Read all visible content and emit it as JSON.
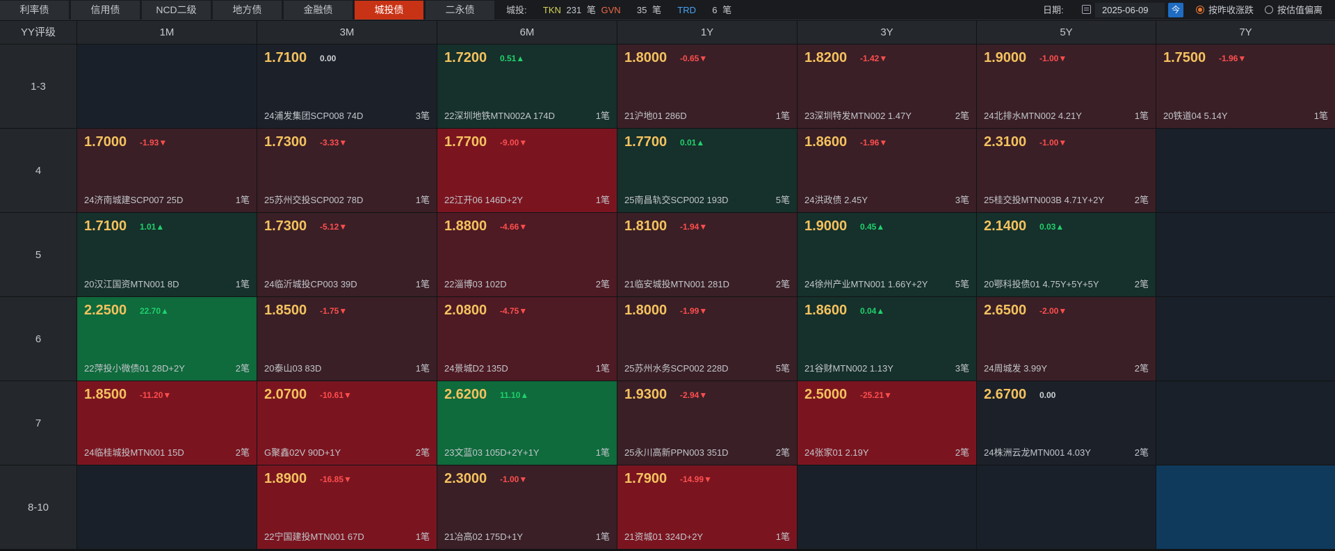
{
  "tabs": [
    "利率债",
    "信用债",
    "NCD二级",
    "地方债",
    "金融债",
    "城投债",
    "二永债"
  ],
  "active_tab": 5,
  "info": {
    "label": "城投:",
    "tkn_label": "TKN",
    "tkn_count": "231",
    "tkn_unit": "笔",
    "gvn_label": "GVN",
    "gvn_count": "35",
    "gvn_unit": "笔",
    "trd_label": "TRD",
    "trd_count": "6",
    "trd_unit": "笔"
  },
  "date": {
    "label": "日期:",
    "value": "2025-06-09",
    "today": "今"
  },
  "options": {
    "by_close": "按昨收涨跌",
    "by_valuation": "按估值偏离",
    "selected": "by_close"
  },
  "columns": [
    "YY评级",
    "1M",
    "3M",
    "6M",
    "1Y",
    "3Y",
    "5Y",
    "7Y"
  ],
  "rows": [
    "1-3",
    "4",
    "5",
    "6",
    "7",
    "8-10"
  ],
  "colors": {
    "accent": "#c93315",
    "rate": "#f4c25f",
    "up": "#1fd16c",
    "down": "#ff4e4e"
  },
  "cells": [
    [
      null,
      {
        "rate": "1.7100",
        "chg": "0.00",
        "dir": "flat",
        "name": "24浦发集团SCP008 74D",
        "cnt": "3笔",
        "bg": "flat"
      },
      {
        "rate": "1.7200",
        "chg": "0.51▲",
        "dir": "up",
        "name": "22深圳地铁MTN002A 174D",
        "cnt": "1笔",
        "bg": "gl"
      },
      {
        "rate": "1.8000",
        "chg": "-0.65▼",
        "dir": "down",
        "name": "21沪地01 286D",
        "cnt": "1笔",
        "bg": "rl"
      },
      {
        "rate": "1.8200",
        "chg": "-1.42▼",
        "dir": "down",
        "name": "23深圳特发MTN002 1.47Y",
        "cnt": "2笔",
        "bg": "rl"
      },
      {
        "rate": "1.9000",
        "chg": "-1.00▼",
        "dir": "down",
        "name": "24北排水MTN002 4.21Y",
        "cnt": "1笔",
        "bg": "rl"
      },
      {
        "rate": "1.7500",
        "chg": "-1.96▼",
        "dir": "down",
        "name": "20铁道04 5.14Y",
        "cnt": "1笔",
        "bg": "rl"
      }
    ],
    [
      {
        "rate": "1.7000",
        "chg": "-1.93▼",
        "dir": "down",
        "name": "24济南城建SCP007 25D",
        "cnt": "1笔",
        "bg": "rl"
      },
      {
        "rate": "1.7300",
        "chg": "-3.33▼",
        "dir": "down",
        "name": "25苏州交投SCP002 78D",
        "cnt": "1笔",
        "bg": "rl"
      },
      {
        "rate": "1.7700",
        "chg": "-9.00▼",
        "dir": "down",
        "name": "22江开06 146D+2Y",
        "cnt": "1笔",
        "bg": "rh"
      },
      {
        "rate": "1.7700",
        "chg": "0.01▲",
        "dir": "up",
        "name": "25南昌轨交SCP002 193D",
        "cnt": "5笔",
        "bg": "gl"
      },
      {
        "rate": "1.8600",
        "chg": "-1.96▼",
        "dir": "down",
        "name": "24洪政债 2.45Y",
        "cnt": "3笔",
        "bg": "rl"
      },
      {
        "rate": "2.3100",
        "chg": "-1.00▼",
        "dir": "down",
        "name": "25桂交投MTN003B 4.71Y+2Y",
        "cnt": "2笔",
        "bg": "rl"
      },
      null
    ],
    [
      {
        "rate": "1.7100",
        "chg": "1.01▲",
        "dir": "up",
        "name": "20汉江国资MTN001 8D",
        "cnt": "1笔",
        "bg": "gl"
      },
      {
        "rate": "1.7300",
        "chg": "-5.12▼",
        "dir": "down",
        "name": "24临沂城投CP003 39D",
        "cnt": "1笔",
        "bg": "rl"
      },
      {
        "rate": "1.8800",
        "chg": "-4.66▼",
        "dir": "down",
        "name": "22淄博03 102D",
        "cnt": "2笔",
        "bg": "rm"
      },
      {
        "rate": "1.8100",
        "chg": "-1.94▼",
        "dir": "down",
        "name": "21临安城投MTN001 281D",
        "cnt": "2笔",
        "bg": "rl"
      },
      {
        "rate": "1.9000",
        "chg": "0.45▲",
        "dir": "up",
        "name": "24徐州产业MTN001 1.66Y+2Y",
        "cnt": "5笔",
        "bg": "gl"
      },
      {
        "rate": "2.1400",
        "chg": "0.03▲",
        "dir": "up",
        "name": "20鄂科投债01 4.75Y+5Y+5Y",
        "cnt": "2笔",
        "bg": "gl"
      },
      null
    ],
    [
      {
        "rate": "2.2500",
        "chg": "22.70▲",
        "dir": "up",
        "name": "22萍投小微债01 28D+2Y",
        "cnt": "2笔",
        "bg": "gm"
      },
      {
        "rate": "1.8500",
        "chg": "-1.75▼",
        "dir": "down",
        "name": "20泰山03 83D",
        "cnt": "1笔",
        "bg": "rl"
      },
      {
        "rate": "2.0800",
        "chg": "-4.75▼",
        "dir": "down",
        "name": "24景城D2 135D",
        "cnt": "1笔",
        "bg": "rm"
      },
      {
        "rate": "1.8000",
        "chg": "-1.99▼",
        "dir": "down",
        "name": "25苏州水务SCP002 228D",
        "cnt": "5笔",
        "bg": "rl"
      },
      {
        "rate": "1.8600",
        "chg": "0.04▲",
        "dir": "up",
        "name": "21谷财MTN002 1.13Y",
        "cnt": "3笔",
        "bg": "gl"
      },
      {
        "rate": "2.6500",
        "chg": "-2.00▼",
        "dir": "down",
        "name": "24周城发 3.99Y",
        "cnt": "2笔",
        "bg": "rl"
      },
      null
    ],
    [
      {
        "rate": "1.8500",
        "chg": "-11.20▼",
        "dir": "down",
        "name": "24临桂城投MTN001 15D",
        "cnt": "2笔",
        "bg": "rh"
      },
      {
        "rate": "2.0700",
        "chg": "-10.61▼",
        "dir": "down",
        "name": "G聚鑫02V 90D+1Y",
        "cnt": "2笔",
        "bg": "rh"
      },
      {
        "rate": "2.6200",
        "chg": "11.10▲",
        "dir": "up",
        "name": "23文蓝03 105D+2Y+1Y",
        "cnt": "1笔",
        "bg": "gm"
      },
      {
        "rate": "1.9300",
        "chg": "-2.94▼",
        "dir": "down",
        "name": "25永川高新PPN003 351D",
        "cnt": "2笔",
        "bg": "rl"
      },
      {
        "rate": "2.5000",
        "chg": "-25.21▼",
        "dir": "down",
        "name": "24张家01 2.19Y",
        "cnt": "2笔",
        "bg": "rh"
      },
      {
        "rate": "2.6700",
        "chg": "0.00",
        "dir": "flat",
        "name": "24株洲云龙MTN001 4.03Y",
        "cnt": "2笔",
        "bg": "flat"
      },
      null
    ],
    [
      null,
      {
        "rate": "1.8900",
        "chg": "-16.85▼",
        "dir": "down",
        "name": "22宁国建投MTN001 67D",
        "cnt": "1笔",
        "bg": "rh"
      },
      {
        "rate": "2.3000",
        "chg": "-1.00▼",
        "dir": "down",
        "name": "21冶高02 175D+1Y",
        "cnt": "1笔",
        "bg": "rl"
      },
      {
        "rate": "1.7900",
        "chg": "-14.99▼",
        "dir": "down",
        "name": "21资城01 324D+2Y",
        "cnt": "1笔",
        "bg": "rh"
      },
      null,
      null,
      "blue"
    ]
  ]
}
